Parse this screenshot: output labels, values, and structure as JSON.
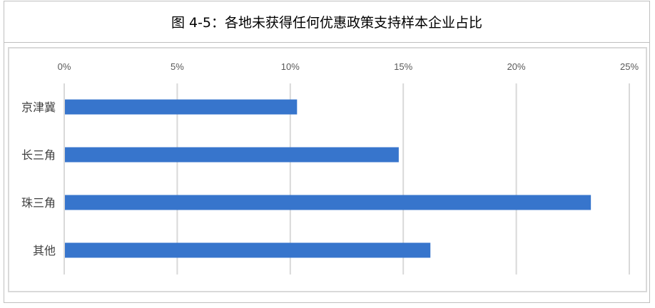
{
  "chart_data": {
    "type": "bar",
    "orientation": "horizontal",
    "title": "图 4-5：各地未获得任何优惠政策支持样本企业占比",
    "categories": [
      "京津冀",
      "长三角",
      "珠三角",
      "其他"
    ],
    "values": [
      10.3,
      14.8,
      23.3,
      16.2
    ],
    "xlabel": "",
    "ylabel": "",
    "xlim": [
      0,
      25
    ],
    "xticks": [
      "0%",
      "5%",
      "10%",
      "15%",
      "20%",
      "25%"
    ],
    "xaxis_position": "top",
    "grid": true,
    "bar_color": "#3775CC",
    "grid_color": "#D9D9D9"
  }
}
